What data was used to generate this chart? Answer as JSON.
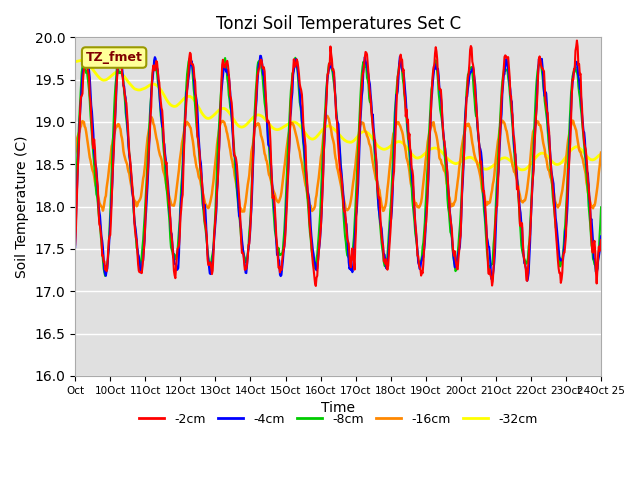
{
  "title": "Tonzi Soil Temperatures Set C",
  "xlabel": "Time",
  "ylabel": "Soil Temperature (C)",
  "ylim": [
    16.0,
    20.0
  ],
  "yticks": [
    16.0,
    16.5,
    17.0,
    17.5,
    18.0,
    18.5,
    19.0,
    19.5,
    20.0
  ],
  "xtick_labels": [
    "Oct",
    "10Oct",
    "11Oct",
    "12Oct",
    "13Oct",
    "14Oct",
    "15Oct",
    "16Oct",
    "17Oct",
    "18Oct",
    "19Oct",
    "20Oct",
    "21Oct",
    "22Oct",
    "23Oct",
    "24Oct 25"
  ],
  "legend_labels": [
    "-2cm",
    "-4cm",
    "-8cm",
    "-16cm",
    "-32cm"
  ],
  "line_colors": [
    "#ff0000",
    "#0000ff",
    "#00cc00",
    "#ff8800",
    "#ffff00"
  ],
  "annotation_text": "TZ_fmet",
  "annotation_color": "#800000",
  "annotation_bg": "#ffff99",
  "background_color": "#e0e0e0",
  "n_points": 720
}
